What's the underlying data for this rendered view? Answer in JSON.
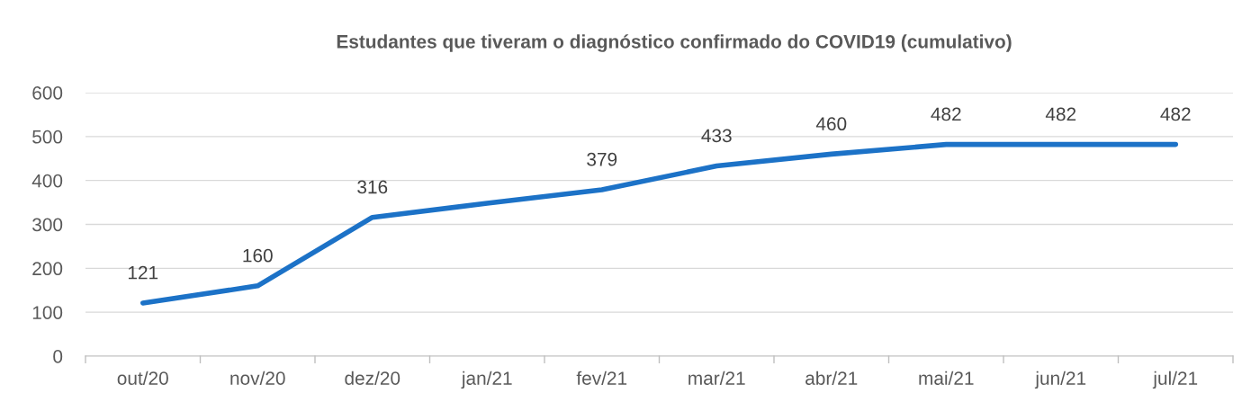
{
  "chart_data": {
    "type": "line",
    "title": "Estudantes que tiveram o diagnóstico confirmado do COVID19 (cumulativo)",
    "categories": [
      "out/20",
      "nov/20",
      "dez/20",
      "jan/21",
      "fev/21",
      "mar/21",
      "abr/21",
      "mai/21",
      "jun/21",
      "jul/21"
    ],
    "series": [
      {
        "color": "#1c72c7",
        "values": [
          121,
          160,
          316,
          348,
          379,
          433,
          460,
          482,
          482,
          482
        ],
        "value_labels": [
          "121",
          "160",
          "316",
          null,
          "379",
          "433",
          "460",
          "482",
          "482",
          "482"
        ]
      }
    ],
    "ylim": [
      0,
      600
    ],
    "yticks": [
      0,
      100,
      200,
      300,
      400,
      500,
      600
    ],
    "grid": "y",
    "marker": "none",
    "line_style": "solid",
    "legend": false
  }
}
